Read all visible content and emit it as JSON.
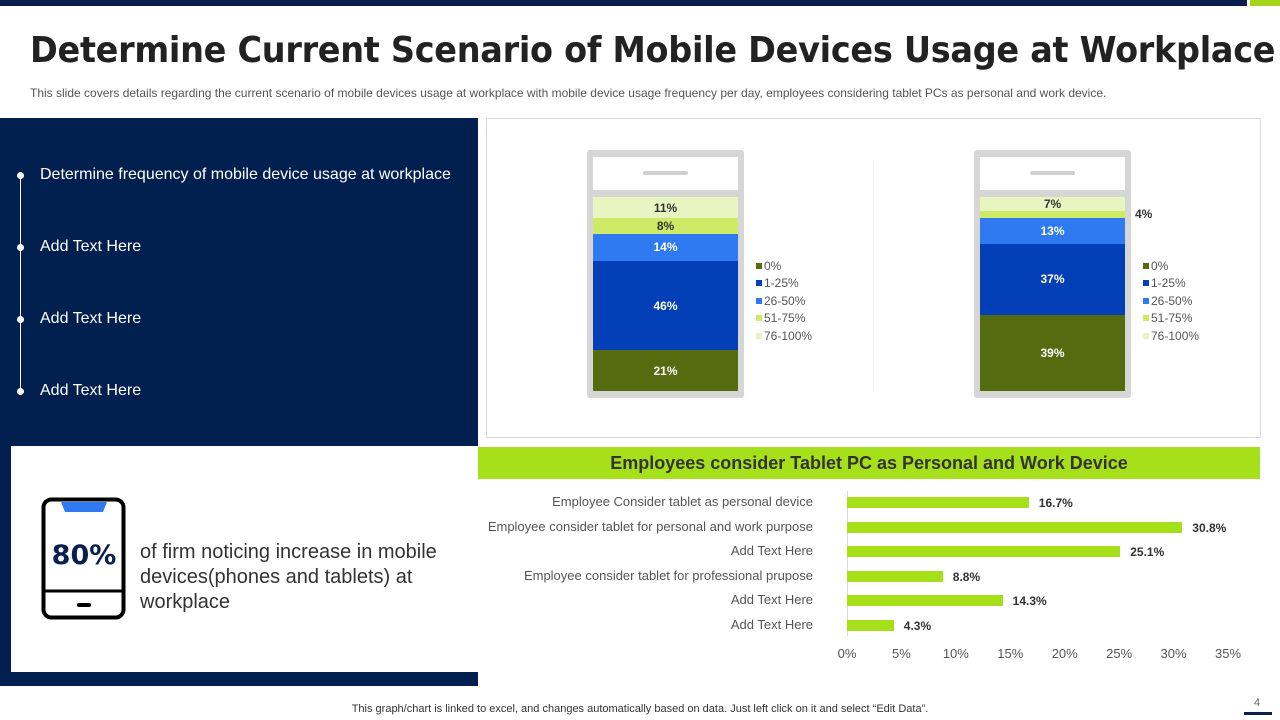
{
  "header": {
    "title": "Determine Current Scenario of Mobile Devices Usage at Workplace",
    "subtitle": "This slide covers details regarding the current scenario of mobile devices usage at workplace with mobile device usage frequency per day, employees considering tablet PCs as personal and work device."
  },
  "timeline": {
    "items": [
      {
        "label": "Determine frequency  of mobile device usage at workplace"
      },
      {
        "label": "Add Text Here"
      },
      {
        "label": "Add Text Here"
      },
      {
        "label": "Add Text Here"
      }
    ]
  },
  "stat": {
    "value": "80%",
    "text": "of firm noticing increase in mobile  devices(phones and tablets) at workplace"
  },
  "colors": {
    "navy": "#02204f",
    "accent_green": "#a6e01a",
    "0%": "#556b0f",
    "1-25%": "#0340b8",
    "26-50%": "#2f7af0",
    "51-75%": "#cdeb66",
    "76-100%": "#e8f5c0"
  },
  "chart_data": [
    {
      "type": "bar",
      "stacked": true,
      "categories": [
        "0%",
        "1-25%",
        "26-50%",
        "51-75%",
        "76-100%"
      ],
      "values": [
        21,
        46,
        14,
        8,
        11
      ],
      "labels": [
        "21%",
        "46%",
        "14%",
        "8%",
        "11%"
      ],
      "legend": [
        "0%",
        "1-25%",
        "26-50%",
        "51-75%",
        "76-100%"
      ],
      "legend_position": "right"
    },
    {
      "type": "bar",
      "stacked": true,
      "categories": [
        "0%",
        "1-25%",
        "26-50%",
        "51-75%",
        "76-100%"
      ],
      "values": [
        39,
        37,
        13,
        4,
        7
      ],
      "labels": [
        "39%",
        "37%",
        "13%",
        "4%",
        "7%"
      ],
      "legend": [
        "0%",
        "1-25%",
        "26-50%",
        "51-75%",
        "76-100%"
      ],
      "legend_position": "right"
    },
    {
      "type": "bar",
      "orientation": "horizontal",
      "title": "Employees consider Tablet PC as Personal and Work Device",
      "categories": [
        "Employee Consider tablet as personal device",
        "Employee consider tablet for personal and work purpose",
        "Add Text Here",
        "Employee consider tablet for professional prupose",
        "Add Text Here",
        "Add Text Here"
      ],
      "values": [
        16.7,
        30.8,
        25.1,
        8.8,
        14.3,
        4.3
      ],
      "labels": [
        "16.7%",
        "30.8%",
        "25.1%",
        "8.8%",
        "14.3%",
        "4.3%"
      ],
      "xlim": [
        0,
        35
      ],
      "xticks": [
        "0%",
        "5%",
        "10%",
        "15%",
        "20%",
        "25%",
        "30%",
        "35%"
      ],
      "grid": false
    }
  ],
  "footer": {
    "note": "This graph/chart is linked to excel,  and changes automatically based on data. Just left click on it and select “Edit Data”.",
    "page": "4"
  }
}
